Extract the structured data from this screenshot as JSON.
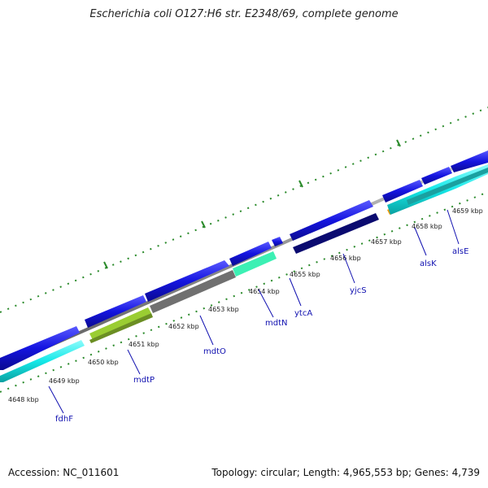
{
  "title": "Escherichia coli O127:H6 str. E2348/69, complete genome",
  "accession": "Accession: NC_011601",
  "topology": "Topology: circular; Length: 4,965,553 bp; Genes: 4,739",
  "ticks": [
    "4648 kbp",
    "4649 kbp",
    "4650 kbp",
    "4651 kbp",
    "4652 kbp",
    "4653 kbp",
    "4654 kbp",
    "4655 kbp",
    "4656 kbp",
    "4657 kbp",
    "4658 kbp",
    "4659 kbp"
  ],
  "genes": [
    "fdhF",
    "mdtP",
    "mdtO",
    "mdtN",
    "ytcA",
    "yjcS",
    "alsK",
    "alsE"
  ],
  "colors": {
    "backbone": "#8c8c8c",
    "forward_cds": "#1414e0",
    "dots": "#2a8a2a",
    "cyan": "#14e8e8",
    "lime": "#9acd32",
    "gray": "#707070",
    "mint": "#3cf0b4",
    "navy": "#0a0a70",
    "orange": "#ff9900",
    "teal": "#1aa0a0"
  }
}
